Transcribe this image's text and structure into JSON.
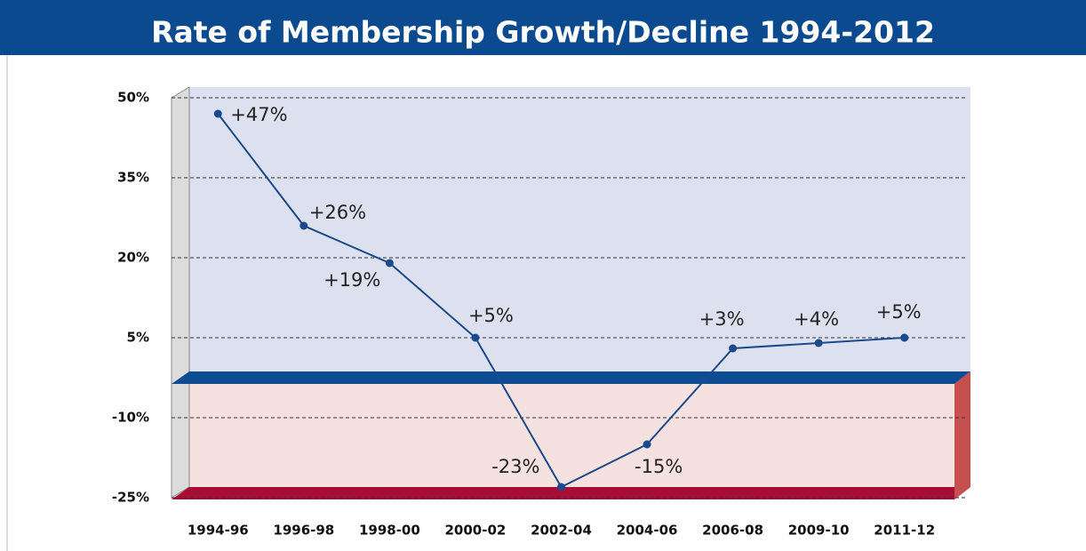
{
  "chart_data": {
    "type": "line",
    "title": "Rate of Membership Growth/Decline 1994-2012",
    "categories": [
      "1994-96",
      "1996-98",
      "1998-00",
      "2000-02",
      "2002-04",
      "2004-06",
      "2006-08",
      "2009-10",
      "2011-12"
    ],
    "values": [
      47,
      26,
      19,
      5,
      -23,
      -15,
      3,
      4,
      5
    ],
    "value_labels": [
      "+47%",
      "+26%",
      "+19%",
      "+5%",
      "-23%",
      "-15%",
      "+3%",
      "+4%",
      "+5%"
    ],
    "color": "#1a4a8c",
    "ylim": [
      -25,
      50
    ],
    "yticks": [
      {
        "value": 50,
        "label": "50%"
      },
      {
        "value": 35,
        "label": "35%"
      },
      {
        "value": 20,
        "label": "20%"
      },
      {
        "value": 5,
        "label": "5%"
      },
      {
        "value": -10,
        "label": "-10%"
      },
      {
        "value": -25,
        "label": "-25%"
      }
    ],
    "grid": true
  }
}
